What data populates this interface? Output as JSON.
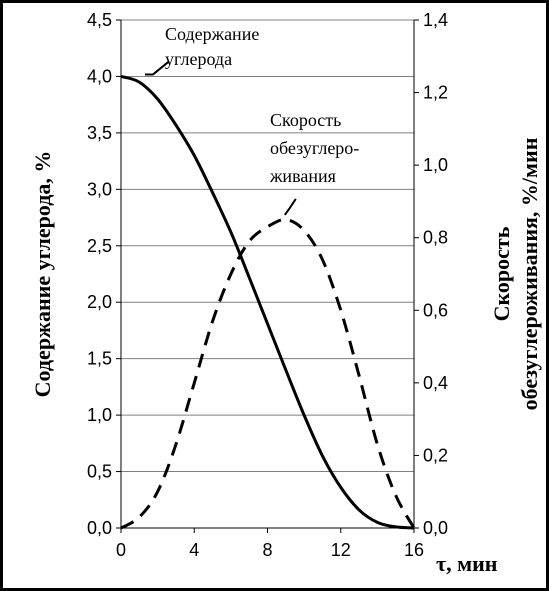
{
  "chart_data": {
    "type": "line",
    "x_axis": {
      "label": "τ, мин",
      "ticks": [
        "0",
        "4",
        "8",
        "12",
        "16"
      ],
      "range": [
        0,
        16
      ]
    },
    "y_left": {
      "label": "Содержание углерода, %",
      "ticks": [
        "0,0",
        "0,5",
        "1,0",
        "1,5",
        "2,0",
        "2,5",
        "3,0",
        "3,5",
        "4,0",
        "4,5"
      ],
      "range": [
        0,
        4.5
      ]
    },
    "y_right": {
      "label_line1": "Скорость",
      "label_line2": "обезуглероживания, %/мин",
      "ticks": [
        "0,0",
        "0,2",
        "0,4",
        "0,6",
        "0,8",
        "1,0",
        "1,2",
        "1,4"
      ],
      "range": [
        0,
        1.4
      ]
    },
    "grid": "horizontal",
    "series": [
      {
        "axis": "left",
        "style": "solid",
        "x": [
          0,
          1,
          2,
          3,
          4,
          5,
          6,
          7,
          8,
          9,
          10,
          11,
          12,
          13,
          14,
          15,
          16
        ],
        "y": [
          4.0,
          3.95,
          3.8,
          3.57,
          3.3,
          2.97,
          2.62,
          2.22,
          1.81,
          1.4,
          1.0,
          0.64,
          0.36,
          0.16,
          0.05,
          0.01,
          0.0
        ]
      },
      {
        "axis": "right",
        "style": "dashed",
        "x": [
          0,
          1,
          2,
          3,
          4,
          5,
          6,
          7,
          8,
          9,
          10,
          11,
          12,
          13,
          14,
          15,
          16
        ],
        "y": [
          0.0,
          0.03,
          0.1,
          0.23,
          0.4,
          0.57,
          0.7,
          0.79,
          0.83,
          0.85,
          0.82,
          0.74,
          0.6,
          0.42,
          0.23,
          0.09,
          0.0
        ]
      }
    ],
    "annotations": [
      {
        "lines": [
          "Содержание",
          "углерода"
        ],
        "x": 1.2,
        "y": 4.0,
        "axis": "left"
      },
      {
        "lines": [
          "Скорость",
          "обезуглеро-",
          "живания"
        ],
        "x": 9.0,
        "y": 0.86,
        "axis": "right"
      }
    ]
  }
}
